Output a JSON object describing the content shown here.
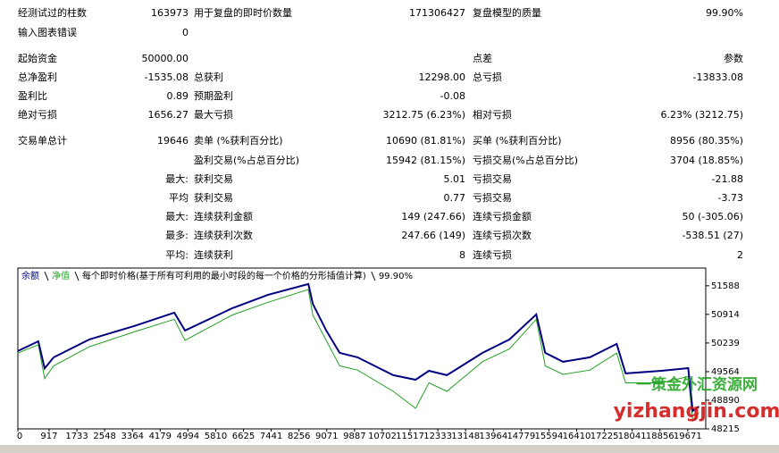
{
  "report": {
    "rows": [
      [
        "经测试过的柱数",
        "163973",
        "用于复盘的即时价数量",
        "171306427",
        "复盘模型的质量",
        "99.90%"
      ],
      [
        "输入图表错误",
        "0",
        null,
        null,
        null,
        null
      ],
      [
        "起始资金",
        "50000.00",
        null,
        null,
        "点差",
        "参数"
      ],
      [
        "总净盈利",
        "-1535.08",
        "总获利",
        "12298.00",
        "总亏损",
        "-13833.08"
      ],
      [
        "盈利比",
        "0.89",
        "预期盈利",
        "-0.08",
        null,
        null
      ],
      [
        "绝对亏损",
        "1656.27",
        "最大亏损",
        "3212.75 (6.23%)",
        "相对亏损",
        "6.23% (3212.75)"
      ],
      [
        "交易单总计",
        "19646",
        "卖单 (%获利百分比)",
        "10690 (81.81%)",
        "买单 (%获利百分比)",
        "8956 (80.35%)"
      ],
      [
        null,
        null,
        "盈利交易(%占总百分比)",
        "15942 (81.15%)",
        "亏损交易(%占总百分比)",
        "3704 (18.85%)"
      ],
      [
        null,
        "最大:",
        "获利交易",
        "5.01",
        "亏损交易",
        "-21.88"
      ],
      [
        null,
        "平均",
        "获利交易",
        "0.77",
        "亏损交易",
        "-3.73"
      ],
      [
        null,
        "最大:",
        "连续获利金额",
        "149 (247.66)",
        "连续亏损金额",
        "50 (-305.06)"
      ],
      [
        null,
        "最多:",
        "连续获利次数",
        "247.66 (149)",
        "连续亏损次数",
        "-538.51 (27)"
      ],
      [
        null,
        "平均:",
        "连续获利",
        "8",
        "连续亏损",
        "2"
      ]
    ]
  },
  "watermark": {
    "name": "一策金外汇资源网",
    "url": "yizhangjin.com"
  },
  "chart_data": {
    "type": "line",
    "subtitle": "每个即时价格(基于所有可利用的最小时段的每一个价格的分形插值计算)",
    "note": "99.90%",
    "x": [
      0,
      600,
      787,
      1050,
      2100,
      3412,
      4593,
      4908,
      6299,
      7349,
      8530,
      8661,
      9055,
      9449,
      9974,
      11024,
      11680,
      12073,
      12598,
      13648,
      14436,
      15223,
      15486,
      16010,
      16798,
      17585,
      17848,
      18898,
      19685,
      19816,
      20000
    ],
    "series": [
      {
        "name": "余额",
        "color": "#000080",
        "values": [
          50049,
          50280,
          49640,
          49900,
          50323,
          50639,
          50955,
          50534,
          51061,
          51377,
          51630,
          51166,
          50534,
          50007,
          49901,
          49480,
          49374,
          49585,
          49480,
          50007,
          50323,
          50913,
          50007,
          49796,
          49901,
          50218,
          49522,
          49585,
          49648,
          48637,
          48742
        ]
      },
      {
        "name": "净值",
        "color": "#22a022",
        "values": [
          50000,
          50200,
          49400,
          49700,
          50150,
          50500,
          50800,
          50300,
          50900,
          51200,
          51500,
          50900,
          50300,
          49700,
          49600,
          49100,
          48700,
          49300,
          49100,
          49800,
          50100,
          50800,
          49700,
          49500,
          49600,
          50000,
          49300,
          49300,
          49450,
          48400,
          48600
        ]
      }
    ],
    "xlim": [
      0,
      20200
    ],
    "ylim": [
      48215,
      52006
    ],
    "xticks": [
      0,
      917,
      1733,
      2548,
      3364,
      4179,
      4994,
      5810,
      6625,
      7441,
      8256,
      9071,
      9887,
      10702,
      11517,
      12333,
      13148,
      13964,
      14779,
      15594,
      16410,
      17225,
      18041,
      18856,
      19671
    ],
    "yticks": [
      51588,
      50914,
      50239,
      49564,
      48890,
      48215
    ],
    "y_axis_side": "right"
  }
}
